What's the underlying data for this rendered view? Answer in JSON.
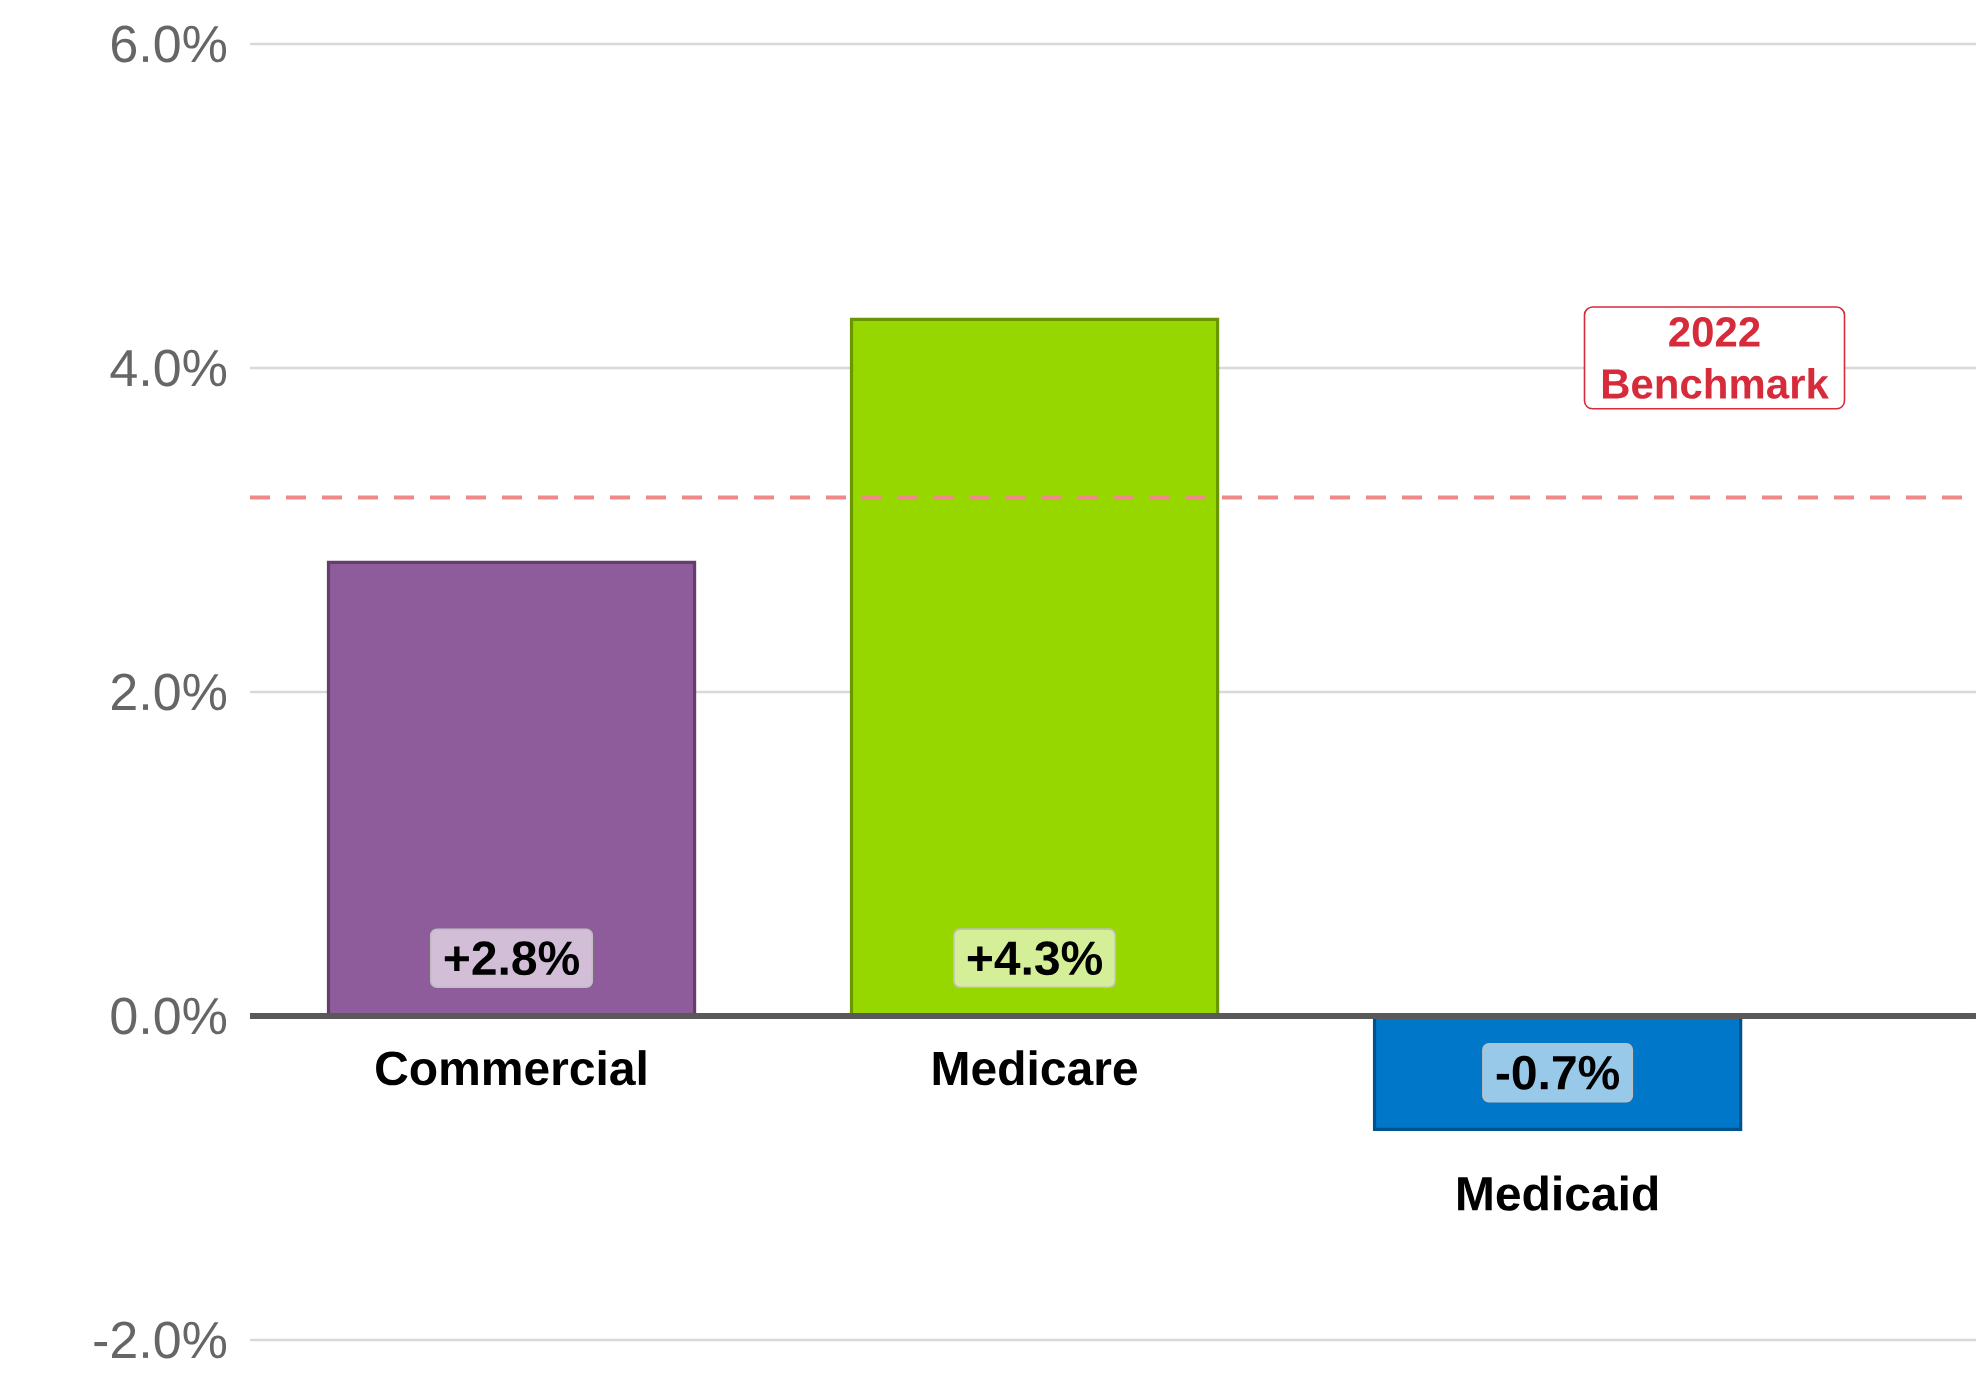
{
  "chart_data": {
    "type": "bar",
    "categories": [
      "Commercial",
      "Medicare",
      "Medicaid"
    ],
    "values": [
      2.8,
      4.3,
      -0.7
    ],
    "colors": [
      "#8e5c9a",
      "#97d700",
      "#0077c8"
    ],
    "value_labels": [
      "+2.8%",
      "+4.3%",
      "-0.7%"
    ],
    "ylim": [
      -2,
      6
    ],
    "yticks": [
      {
        "value": -2,
        "label": "-2.0%"
      },
      {
        "value": 0,
        "label": "0.0%"
      },
      {
        "value": 2,
        "label": "2.0%"
      },
      {
        "value": 4,
        "label": "4.0%"
      },
      {
        "value": 6,
        "label": "6.0%"
      }
    ],
    "grid": "y",
    "ref_lines": [
      {
        "axis": "y",
        "value": 3.2,
        "label": "2022 Benchmark",
        "color": "#f08a8a",
        "line_style": "dashed"
      }
    ]
  }
}
